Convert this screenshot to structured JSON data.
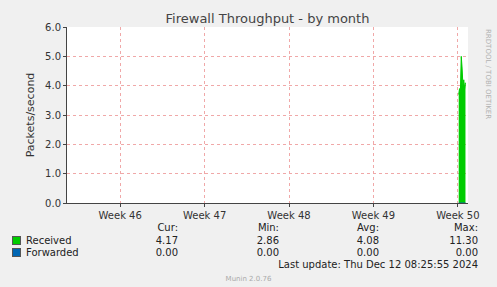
{
  "chart_data": {
    "type": "area",
    "title": "Firewall Throughput - by month",
    "y_label": "Packets/second",
    "x": [
      50.01,
      50.02,
      50.03,
      50.04,
      50.05,
      50.06,
      50.07,
      50.08,
      50.09
    ],
    "series": [
      {
        "name": "Received",
        "color": "#00cc00",
        "values": [
          3.7,
          3.9,
          3.8,
          5.0,
          4.6,
          4.0,
          4.2,
          3.9,
          4.1
        ]
      },
      {
        "name": "Forwarded",
        "color": "#0066b3",
        "type": "line",
        "values": [
          0,
          0,
          0,
          0,
          0,
          0,
          0,
          0,
          0
        ]
      }
    ],
    "xlim": [
      45.37,
      50.12
    ],
    "xticks": [
      {
        "value": 46,
        "label": "Week 46"
      },
      {
        "value": 47,
        "label": "Week 47"
      },
      {
        "value": 48,
        "label": "Week 48"
      },
      {
        "value": 49,
        "label": "Week 49"
      },
      {
        "value": 50,
        "label": "Week 50"
      }
    ],
    "ylim": [
      0,
      6
    ],
    "yticks": [
      {
        "value": 0,
        "label": "0.0"
      },
      {
        "value": 1,
        "label": "1.0"
      },
      {
        "value": 2,
        "label": "2.0"
      },
      {
        "value": 3,
        "label": "3.0"
      },
      {
        "value": 4,
        "label": "4.0"
      },
      {
        "value": 5,
        "label": "5.0"
      },
      {
        "value": 6,
        "label": "6.0"
      }
    ],
    "grid": true
  },
  "legend_table": {
    "columns": [
      "Cur:",
      "Min:",
      "Avg:",
      "Max:"
    ],
    "rows": [
      [
        "4.17",
        "2.86",
        "4.08",
        "11.30"
      ],
      [
        "0.00",
        "0.00",
        "0.00",
        "0.00"
      ]
    ]
  },
  "footer": {
    "last_update": "Last update: Thu Dec 12 08:25:55 2024",
    "version": "Munin 2.0.76"
  },
  "watermark": "RRDTOOL / TOBI OETIKER"
}
